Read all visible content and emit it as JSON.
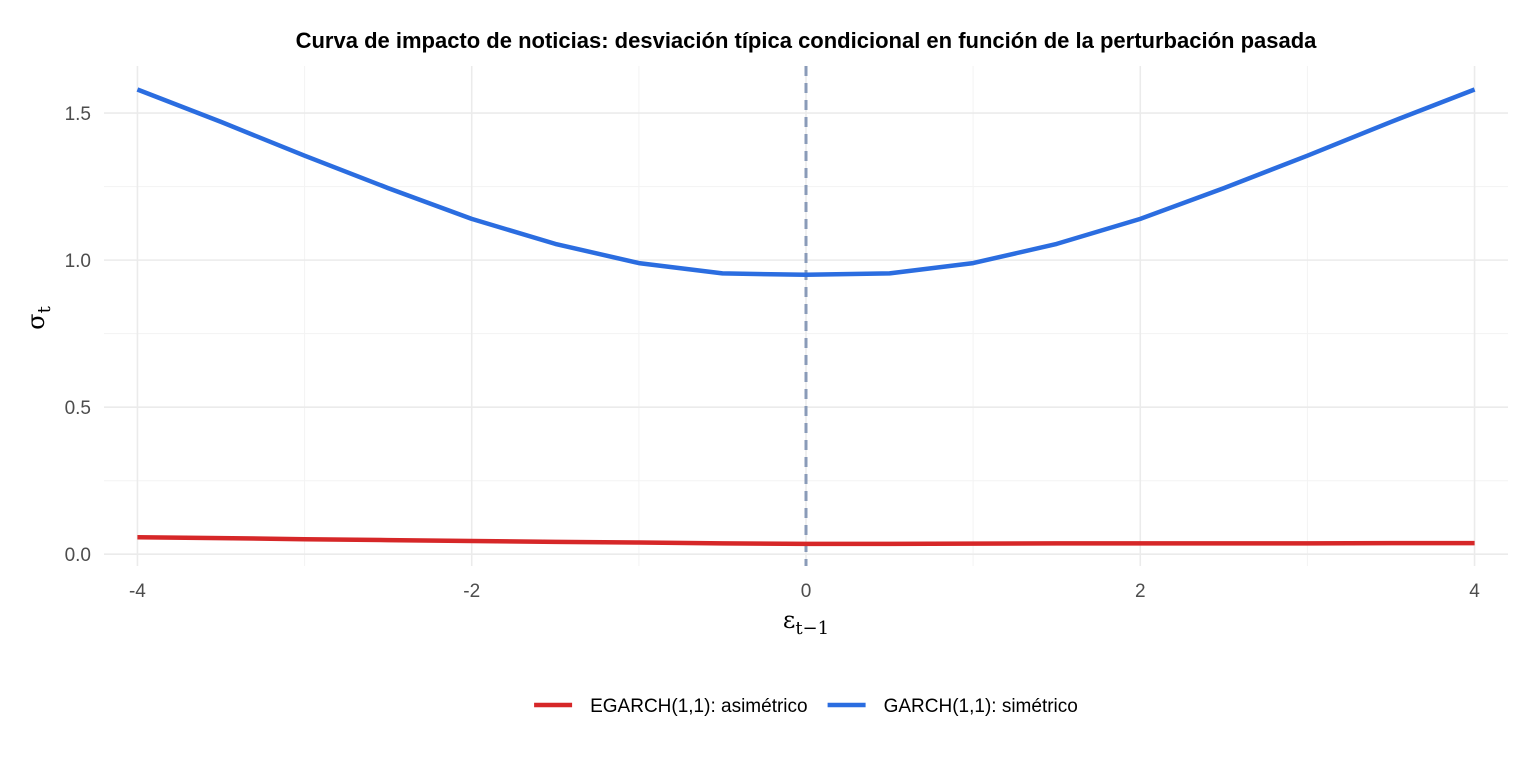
{
  "chart_data": {
    "type": "line",
    "title": "Curva de impacto de noticias: desviación típica condicional en función de la perturbación pasada",
    "xlabel": {
      "base": "ε",
      "sub": "t−1"
    },
    "ylabel": {
      "base": "σ",
      "sub": "t"
    },
    "xlim": [
      -4.2,
      4.2
    ],
    "ylim": [
      -0.04,
      1.66
    ],
    "x_ticks": [
      -4,
      -2,
      0,
      2,
      4
    ],
    "x_tick_labels": [
      "-4",
      "-2",
      "0",
      "2",
      "4"
    ],
    "y_ticks": [
      0,
      0.5,
      1,
      1.5
    ],
    "y_tick_labels": [
      "0.0",
      "0.5",
      "1.0",
      "1.5"
    ],
    "reference_line": {
      "axis": "x",
      "value": 0,
      "style": "dashed",
      "color": "#8a9bb8"
    },
    "grid": true,
    "legend_position": "bottom",
    "series": [
      {
        "name": "EGARCH(1,1): asimétrico",
        "color": "#d62728",
        "x": [
          -4,
          -3.5,
          -3,
          -2.5,
          -2,
          -1.5,
          -1,
          -0.5,
          0,
          0.5,
          1,
          1.5,
          2,
          2.5,
          3,
          3.5,
          4
        ],
        "y": [
          0.058,
          0.055,
          0.051,
          0.048,
          0.045,
          0.042,
          0.04,
          0.037,
          0.035,
          0.035,
          0.036,
          0.037,
          0.037,
          0.037,
          0.037,
          0.038,
          0.038
        ]
      },
      {
        "name": "GARCH(1,1): simétrico",
        "color": "#2b6de0",
        "x": [
          -4,
          -3.5,
          -3,
          -2.5,
          -2,
          -1.5,
          -1,
          -0.5,
          0,
          0.5,
          1,
          1.5,
          2,
          2.5,
          3,
          3.5,
          4
        ],
        "y": [
          1.58,
          1.47,
          1.355,
          1.245,
          1.14,
          1.055,
          0.99,
          0.955,
          0.95,
          0.955,
          0.99,
          1.055,
          1.14,
          1.245,
          1.355,
          1.47,
          1.58
        ]
      }
    ]
  }
}
